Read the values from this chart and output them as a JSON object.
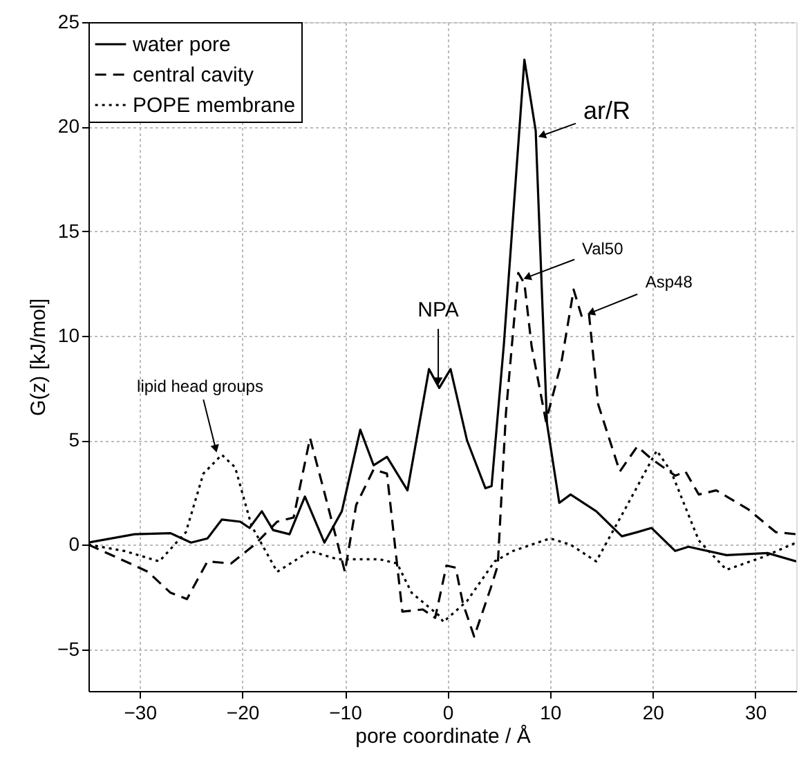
{
  "chart_data": {
    "type": "line",
    "xlabel": "pore coordinate / Å",
    "ylabel": "G(z)  [kJ/mol]",
    "xlim": [
      -35,
      34
    ],
    "ylim": [
      -7,
      25
    ],
    "xticks": [
      -30,
      -20,
      -10,
      0,
      10,
      20,
      30
    ],
    "yticks": [
      -5,
      0,
      5,
      10,
      15,
      20,
      25
    ],
    "grid": true,
    "legend": "top left",
    "marker": "none",
    "series": [
      {
        "name": "water pore",
        "color": "#000000",
        "line_style": "solid",
        "x": [
          -35,
          -30.5,
          -27,
          -25,
          -23.4,
          -22,
          -20.2,
          -19.3,
          -18.1,
          -17,
          -15.4,
          -13.9,
          -12,
          -10.3,
          -8.5,
          -7.2,
          -5.9,
          -3.9,
          -1.8,
          -0.8,
          0.3,
          1.9,
          2.6,
          3.7,
          4.3,
          5.5,
          7.5,
          8.6,
          9.7,
          10.9,
          12,
          14.5,
          17,
          18.5,
          19.9,
          22.2,
          23.5,
          27.2,
          31.2,
          34
        ],
        "values": [
          0.1,
          0.5,
          0.55,
          0.1,
          0.3,
          1.2,
          1.1,
          0.8,
          1.6,
          0.7,
          0.5,
          2.3,
          0.1,
          1.6,
          5.5,
          3.8,
          4.2,
          2.6,
          8.4,
          7.5,
          8.4,
          5.0,
          4.1,
          2.7,
          2.8,
          9.6,
          23.2,
          19.8,
          5.8,
          2.0,
          2.4,
          1.6,
          0.4,
          0.6,
          0.8,
          -0.3,
          -0.1,
          -0.5,
          -0.4,
          -0.8
        ]
      },
      {
        "name": "central cavity",
        "color": "#000000",
        "line_style": "dashed",
        "x": [
          -35,
          -30.5,
          -29.2,
          -27,
          -25.4,
          -23.4,
          -21.1,
          -18.8,
          -16.6,
          -15,
          -13.4,
          -12,
          -10,
          -8.9,
          -7.2,
          -5.9,
          -4.4,
          -2.4,
          -1.2,
          -0.1,
          0.8,
          1.5,
          2.6,
          4.2,
          4.9,
          5.7,
          6.9,
          7.5,
          8.2,
          9.6,
          11.1,
          12.3,
          13.1,
          13.8,
          14.7,
          16.8,
          18.5,
          19.9,
          22.2,
          23.2,
          24.5,
          26.2,
          29.3,
          32,
          34
        ],
        "values": [
          0,
          -1,
          -1.3,
          -2.3,
          -2.6,
          -0.8,
          -0.9,
          0,
          1.1,
          1.3,
          5.1,
          2.5,
          -1.3,
          1.9,
          3.6,
          3.4,
          -3.2,
          -3.1,
          -3.5,
          -1.0,
          -1.1,
          -2.8,
          -4.4,
          -2.1,
          -1.0,
          6.3,
          13.0,
          12.5,
          9.5,
          5.9,
          8.7,
          12.2,
          10.9,
          11,
          6.7,
          3.5,
          4.7,
          4.1,
          3.3,
          3.5,
          2.4,
          2.6,
          1.7,
          0.6,
          0.5
        ]
      },
      {
        "name": "POPE membrane",
        "color": "#000000",
        "line_style": "dotted",
        "x": [
          -35,
          -31.5,
          -28.1,
          -25.5,
          -23.8,
          -22,
          -20.7,
          -19.1,
          -16.6,
          -13.4,
          -10.7,
          -6.6,
          -4.9,
          -3.5,
          -0.8,
          -0.4,
          1.9,
          4.6,
          6.4,
          10,
          12,
          14.5,
          17.2,
          20.4,
          21.8,
          24.5,
          27.2,
          30.7,
          34
        ],
        "values": [
          0,
          -0.3,
          -0.8,
          0.6,
          3.4,
          4.3,
          3.7,
          0.9,
          -1.3,
          -0.3,
          -0.7,
          -0.7,
          -0.9,
          -2.3,
          -3.4,
          -3.7,
          -2.7,
          -0.8,
          -0.3,
          0.3,
          0,
          -0.8,
          1.6,
          4.5,
          3.5,
          0.2,
          -1.2,
          -0.6,
          0.1
        ]
      }
    ],
    "annotations": [
      {
        "text": "NPA",
        "x": -0.9,
        "y": 7.6
      },
      {
        "text": "ar/R",
        "x": 8.8,
        "y": 19.5
      },
      {
        "text": "Val50",
        "x": 7.3,
        "y": 12.7
      },
      {
        "text": "Asp48",
        "x": 13.5,
        "y": 11
      },
      {
        "text": "lipid head groups",
        "x": -22.5,
        "y": 4.4
      }
    ]
  }
}
